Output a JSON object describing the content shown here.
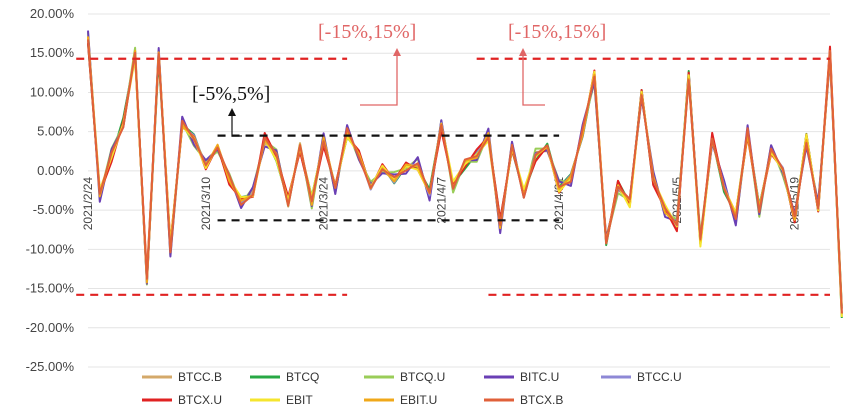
{
  "chart_data": {
    "type": "line",
    "ylim": [
      -25,
      20
    ],
    "yticks": [
      "20.00%",
      "15.00%",
      "10.00%",
      "5.00%",
      "0.00%",
      "-5.00%",
      "-10.00%",
      "-15.00%",
      "-20.00%",
      "-25.00%"
    ],
    "ytick_values": [
      20,
      15,
      10,
      5,
      0,
      -5,
      -10,
      -15,
      -20,
      -25
    ],
    "x_range": [
      0,
      63
    ],
    "xticks": [
      {
        "label": "2021/2/24",
        "x": 0
      },
      {
        "label": "2021/3/10",
        "x": 10
      },
      {
        "label": "2021/3/24",
        "x": 20
      },
      {
        "label": "2021/4/7",
        "x": 30
      },
      {
        "label": "2021/4/21",
        "x": 40
      },
      {
        "label": "2021/5/5",
        "x": 50
      },
      {
        "label": "2021/5/19",
        "x": 60
      }
    ],
    "grid": true,
    "legend_position": "bottom",
    "base_values": [
      17,
      -3,
      2,
      6,
      15,
      -14,
      15,
      -10,
      6,
      4,
      1,
      3,
      -1,
      -4,
      -3,
      4,
      2,
      -4,
      3,
      -4,
      4,
      -2,
      5,
      2,
      -2,
      0,
      -1,
      0.5,
      0.8,
      -3,
      6,
      -2,
      1,
      2,
      4.5,
      -7,
      3,
      -3,
      2,
      3,
      -2,
      -1,
      5,
      12,
      -9,
      -2,
      -4,
      10,
      -1,
      -5,
      -7,
      12,
      -9,
      4,
      -2,
      -6,
      5,
      -5,
      3,
      0,
      -6,
      4,
      -5,
      15,
      -18
    ],
    "series": [
      {
        "name": "BTCC.B",
        "color": "#d4a96a",
        "offset": 0.2
      },
      {
        "name": "BTCQ",
        "color": "#27a844",
        "offset": -0.4
      },
      {
        "name": "BTCQ.U",
        "color": "#9acd58",
        "offset": 0.5
      },
      {
        "name": "BITC.U",
        "color": "#6a3fb5",
        "offset": 0.6
      },
      {
        "name": "BTCC.U",
        "color": "#8e88d6",
        "offset": -0.2
      },
      {
        "name": "BTCX.U",
        "color": "#e02222",
        "offset": -0.5
      },
      {
        "name": "EBIT",
        "color": "#f5e52e",
        "offset": -0.3
      },
      {
        "name": "EBIT.U",
        "color": "#f0a81a",
        "offset": 0.0
      },
      {
        "name": "BTCX.B",
        "color": "#e0603a",
        "offset": 0.1
      }
    ],
    "reference_lines": [
      {
        "y": 14.3,
        "color": "#e02222",
        "segments": [
          [
            -1,
            22
          ],
          [
            33,
            63
          ]
        ]
      },
      {
        "y": -15.8,
        "color": "#e02222",
        "segments": [
          [
            -1,
            22
          ],
          [
            34,
            63
          ]
        ]
      },
      {
        "y": 4.5,
        "color": "#111111",
        "segments": [
          [
            11,
            40
          ]
        ]
      },
      {
        "y": -6.3,
        "color": "#111111",
        "segments": [
          [
            11,
            40
          ]
        ]
      }
    ],
    "annotations": [
      {
        "text": "[-15%,15%]",
        "kind": "red"
      },
      {
        "text": "[-15%,15%]",
        "kind": "red"
      },
      {
        "text": "[-5%,5%]",
        "kind": "black"
      }
    ]
  }
}
